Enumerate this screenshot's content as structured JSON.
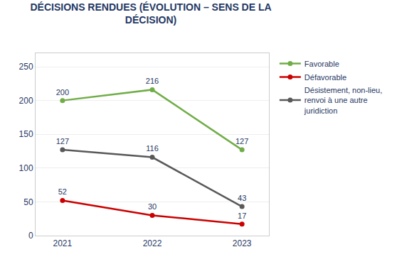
{
  "chart_data": {
    "type": "line",
    "title": "DÉCISIONS RENDUES (ÉVOLUTION – SENS DE LA\nDÉCISION)",
    "categories": [
      "2021",
      "2022",
      "2023"
    ],
    "series": [
      {
        "name": "Favorable",
        "color": "#70AD47",
        "marker": "circle",
        "values": [
          200,
          216,
          127
        ]
      },
      {
        "name": "Défavorable",
        "color": "#CC0000",
        "marker": "circle",
        "values": [
          52,
          30,
          17
        ]
      },
      {
        "name": "Désistement, non-lieu,\nrenvoi à une autre\njuridiction",
        "color": "#595959",
        "marker": "circle",
        "values": [
          127,
          116,
          43
        ]
      }
    ],
    "ylim": [
      0,
      270
    ],
    "yticks": [
      0,
      50,
      100,
      150,
      200,
      250
    ],
    "grid": true,
    "data_labels": true,
    "legend": "right"
  }
}
